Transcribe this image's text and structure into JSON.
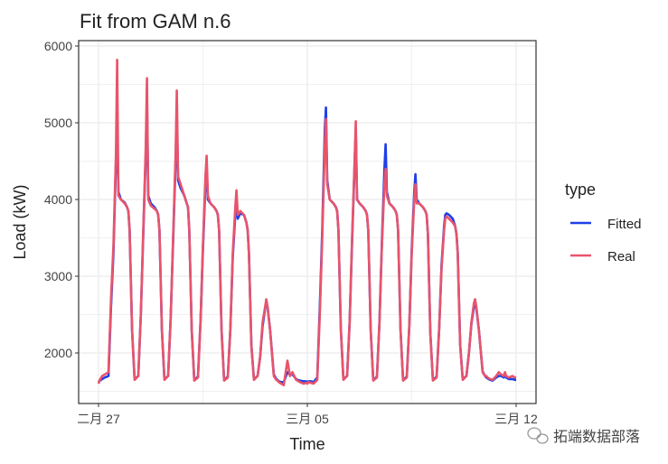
{
  "chart_data": {
    "type": "line",
    "title": "Fit from GAM n.6",
    "xlabel": "Time",
    "ylabel": "Load (kW)",
    "ylim": [
      1330,
      6070
    ],
    "yticks": [
      2000,
      3000,
      4000,
      5000,
      6000
    ],
    "xticks": [
      {
        "day_index": 0,
        "label": "二月 27"
      },
      {
        "day_index": 7,
        "label": "三月 05"
      },
      {
        "day_index": 14,
        "label": "三月 12"
      }
    ],
    "grid": true,
    "legend": {
      "title": "type",
      "placement": "right",
      "entries": [
        {
          "name": "Fitted",
          "color": "#1F3FE8"
        },
        {
          "name": "Real",
          "color": "#E8546B"
        }
      ]
    },
    "hours": [
      0,
      1,
      3,
      5,
      8,
      10,
      12,
      14,
      15,
      16,
      18,
      21,
      23
    ],
    "days": [
      {
        "date": "02-27",
        "real": [
          1600,
          1650,
          1700,
          1720,
          1750,
          2700,
          3400,
          4600,
          5820,
          4050,
          4000,
          3950,
          3900
        ],
        "fitted": [
          1620,
          1640,
          1660,
          1680,
          1700,
          2600,
          3300,
          4500,
          4900,
          4100,
          4000,
          3960,
          3900
        ]
      },
      {
        "date": "02-28",
        "real": [
          3850,
          3600,
          2300,
          1650,
          1700,
          2500,
          3600,
          4700,
          5580,
          4000,
          3920,
          3880,
          3850
        ],
        "fitted": [
          3850,
          3600,
          2300,
          1660,
          1700,
          2500,
          3550,
          4600,
          5300,
          4050,
          3950,
          3900,
          3850
        ]
      },
      {
        "date": "02-29",
        "real": [
          3800,
          3600,
          2300,
          1650,
          1700,
          2450,
          3500,
          4600,
          5420,
          4300,
          4200,
          4050,
          3950
        ],
        "fitted": [
          3800,
          3600,
          2300,
          1660,
          1700,
          2450,
          3450,
          4500,
          5150,
          4250,
          4150,
          4050,
          3950
        ]
      },
      {
        "date": "03-01",
        "real": [
          3900,
          3600,
          2300,
          1640,
          1680,
          2400,
          3400,
          4300,
          4570,
          4050,
          3950,
          3900,
          3850
        ],
        "fitted": [
          3900,
          3600,
          2300,
          1650,
          1690,
          2400,
          3350,
          4200,
          4400,
          4000,
          3950,
          3900,
          3850
        ]
      },
      {
        "date": "03-02",
        "real": [
          3800,
          3600,
          2300,
          1640,
          1680,
          2300,
          3300,
          3900,
          4120,
          3800,
          3850,
          3800,
          3700
        ],
        "fitted": [
          3800,
          3600,
          2300,
          1650,
          1690,
          2300,
          3250,
          3800,
          3950,
          3750,
          3820,
          3800,
          3700
        ]
      },
      {
        "date": "03-03",
        "real": [
          3600,
          3300,
          2100,
          1650,
          1700,
          1950,
          2400,
          2600,
          2700,
          2600,
          2300,
          1700,
          1650
        ],
        "fitted": [
          3600,
          3300,
          2100,
          1660,
          1700,
          1950,
          2350,
          2580,
          2650,
          2600,
          2300,
          1720,
          1660
        ]
      },
      {
        "date": "03-04",
        "real": [
          1640,
          1620,
          1600,
          1580,
          1900,
          1700,
          1750,
          1680,
          1650,
          1640,
          1620,
          1600,
          1610
        ],
        "fitted": [
          1650,
          1630,
          1620,
          1620,
          1750,
          1720,
          1720,
          1680,
          1660,
          1650,
          1640,
          1630,
          1630
        ]
      },
      {
        "date": "03-05",
        "real": [
          1600,
          1620,
          1610,
          1600,
          1650,
          2500,
          3500,
          4700,
          5050,
          4200,
          4000,
          3950,
          3900
        ],
        "fitted": [
          1620,
          1630,
          1630,
          1620,
          1680,
          2600,
          3600,
          4900,
          5200,
          4250,
          4000,
          3950,
          3900
        ]
      },
      {
        "date": "03-06",
        "real": [
          3850,
          3600,
          2300,
          1650,
          1700,
          2400,
          3500,
          4500,
          5020,
          4000,
          3950,
          3900,
          3850
        ],
        "fitted": [
          3850,
          3600,
          2300,
          1660,
          1700,
          2400,
          3450,
          4450,
          4900,
          4000,
          3950,
          3900,
          3850
        ]
      },
      {
        "date": "03-07",
        "real": [
          3800,
          3600,
          2300,
          1640,
          1680,
          2400,
          3400,
          4200,
          4400,
          4050,
          3950,
          3900,
          3850
        ],
        "fitted": [
          3800,
          3600,
          2300,
          1650,
          1690,
          2400,
          3450,
          4400,
          4720,
          4100,
          3950,
          3900,
          3850
        ]
      },
      {
        "date": "03-08",
        "real": [
          3800,
          3600,
          2300,
          1640,
          1680,
          2350,
          3300,
          4000,
          4200,
          3950,
          3950,
          3900,
          3850
        ],
        "fitted": [
          3800,
          3600,
          2300,
          1650,
          1690,
          2350,
          3350,
          4100,
          4330,
          4000,
          3950,
          3900,
          3850
        ]
      },
      {
        "date": "03-09",
        "real": [
          3800,
          3550,
          2250,
          1640,
          1680,
          2300,
          3100,
          3600,
          3750,
          3780,
          3750,
          3700,
          3650
        ],
        "fitted": [
          3800,
          3550,
          2250,
          1650,
          1690,
          2300,
          3150,
          3650,
          3800,
          3820,
          3800,
          3750,
          3650
        ]
      },
      {
        "date": "03-10",
        "real": [
          3550,
          3300,
          2100,
          1650,
          1700,
          2000,
          2400,
          2650,
          2700,
          2600,
          2300,
          1750,
          1700
        ],
        "fitted": [
          3550,
          3300,
          2100,
          1660,
          1700,
          2000,
          2380,
          2600,
          2650,
          2580,
          2300,
          1760,
          1700
        ]
      },
      {
        "date": "03-11",
        "real": [
          1700,
          1680,
          1660,
          1650,
          1700,
          1750,
          1720,
          1700,
          1750,
          1700,
          1680,
          1700,
          1680
        ],
        "fitted": [
          1680,
          1670,
          1650,
          1640,
          1680,
          1700,
          1700,
          1680,
          1700,
          1680,
          1660,
          1660,
          1650
        ]
      }
    ],
    "end": {
      "date": "03-12",
      "real": 1680,
      "fitted": 1650
    }
  },
  "watermark": "拓端数据部落"
}
